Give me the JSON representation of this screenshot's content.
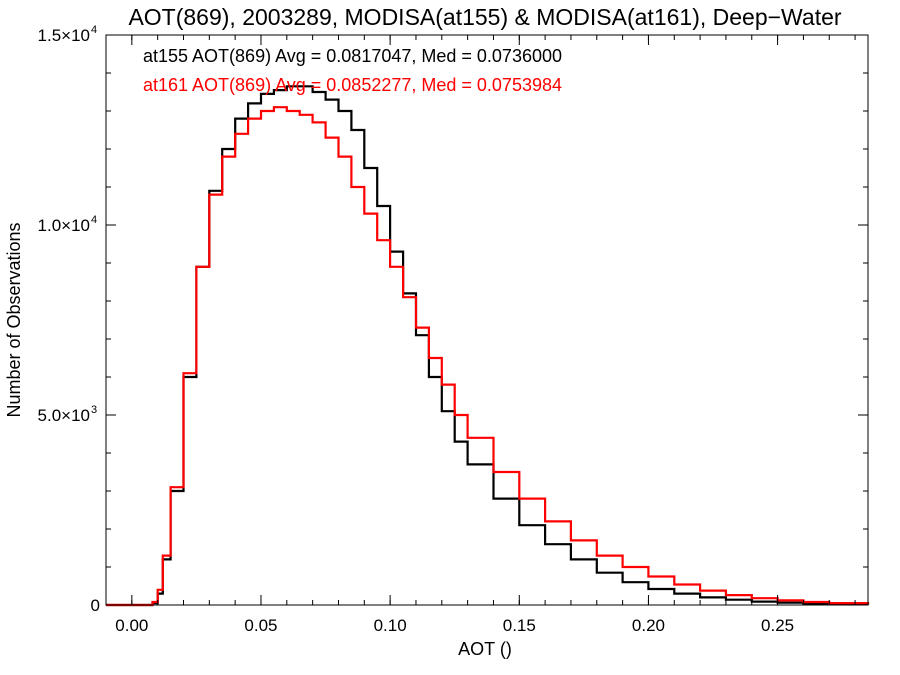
{
  "chart_data": {
    "type": "line",
    "title": "AOT(869), 2003289, MODISA(at155) & MODISA(at161), Deep−Water",
    "xlabel": "AOT ()",
    "ylabel": "Number of Observations",
    "xlim": [
      -0.01,
      0.285
    ],
    "ylim": [
      0,
      15000
    ],
    "xticks": [
      {
        "value": 0.0,
        "label": "0.00"
      },
      {
        "value": 0.05,
        "label": "0.05"
      },
      {
        "value": 0.1,
        "label": "0.10"
      },
      {
        "value": 0.15,
        "label": "0.15"
      },
      {
        "value": 0.2,
        "label": "0.20"
      },
      {
        "value": 0.25,
        "label": "0.25"
      }
    ],
    "yticks": [
      {
        "value": 0,
        "label": "0",
        "exp": ""
      },
      {
        "value": 5000,
        "label": "5.0×10",
        "exp": "3"
      },
      {
        "value": 10000,
        "label": "1.0×10",
        "exp": "4"
      },
      {
        "value": 15000,
        "label": "1.5×10",
        "exp": "4"
      }
    ],
    "grid": false,
    "step": true,
    "series": [
      {
        "name": "at155",
        "color": "#000000",
        "annotation": "at155 AOT(869) Avg = 0.0817047, Med = 0.0736000",
        "x": [
          -0.01,
          0.0,
          0.005,
          0.008,
          0.01,
          0.012,
          0.015,
          0.02,
          0.025,
          0.03,
          0.035,
          0.04,
          0.045,
          0.05,
          0.055,
          0.06,
          0.065,
          0.07,
          0.075,
          0.08,
          0.085,
          0.09,
          0.095,
          0.1,
          0.105,
          0.11,
          0.115,
          0.12,
          0.125,
          0.13,
          0.14,
          0.15,
          0.16,
          0.17,
          0.18,
          0.19,
          0.2,
          0.21,
          0.22,
          0.23,
          0.24,
          0.25,
          0.26,
          0.27,
          0.285
        ],
        "y": [
          0,
          0,
          0,
          50,
          300,
          1200,
          3000,
          6000,
          8900,
          10900,
          12000,
          12800,
          13200,
          13450,
          13550,
          13650,
          13650,
          13500,
          13300,
          13000,
          12500,
          11500,
          10500,
          9300,
          8200,
          7100,
          6000,
          5100,
          4300,
          3700,
          2800,
          2100,
          1600,
          1200,
          850,
          600,
          420,
          300,
          200,
          140,
          90,
          60,
          40,
          25,
          10
        ]
      },
      {
        "name": "at161",
        "color": "#ff0000",
        "annotation": "at161 AOT(869) Avg = 0.0852277, Med = 0.0753984",
        "x": [
          -0.01,
          0.0,
          0.005,
          0.008,
          0.01,
          0.012,
          0.015,
          0.02,
          0.025,
          0.03,
          0.035,
          0.04,
          0.045,
          0.05,
          0.055,
          0.06,
          0.065,
          0.07,
          0.075,
          0.08,
          0.085,
          0.09,
          0.095,
          0.1,
          0.105,
          0.11,
          0.115,
          0.12,
          0.125,
          0.13,
          0.14,
          0.15,
          0.16,
          0.17,
          0.18,
          0.19,
          0.2,
          0.21,
          0.22,
          0.23,
          0.24,
          0.25,
          0.26,
          0.27,
          0.285
        ],
        "y": [
          0,
          0,
          0,
          80,
          400,
          1300,
          3100,
          6100,
          8900,
          10800,
          11800,
          12400,
          12800,
          13000,
          13100,
          13000,
          12900,
          12700,
          12300,
          11800,
          11000,
          10300,
          9600,
          8900,
          8100,
          7300,
          6500,
          5800,
          5000,
          4400,
          3500,
          2800,
          2200,
          1700,
          1300,
          1000,
          750,
          540,
          380,
          260,
          180,
          120,
          80,
          50,
          20
        ]
      }
    ]
  }
}
